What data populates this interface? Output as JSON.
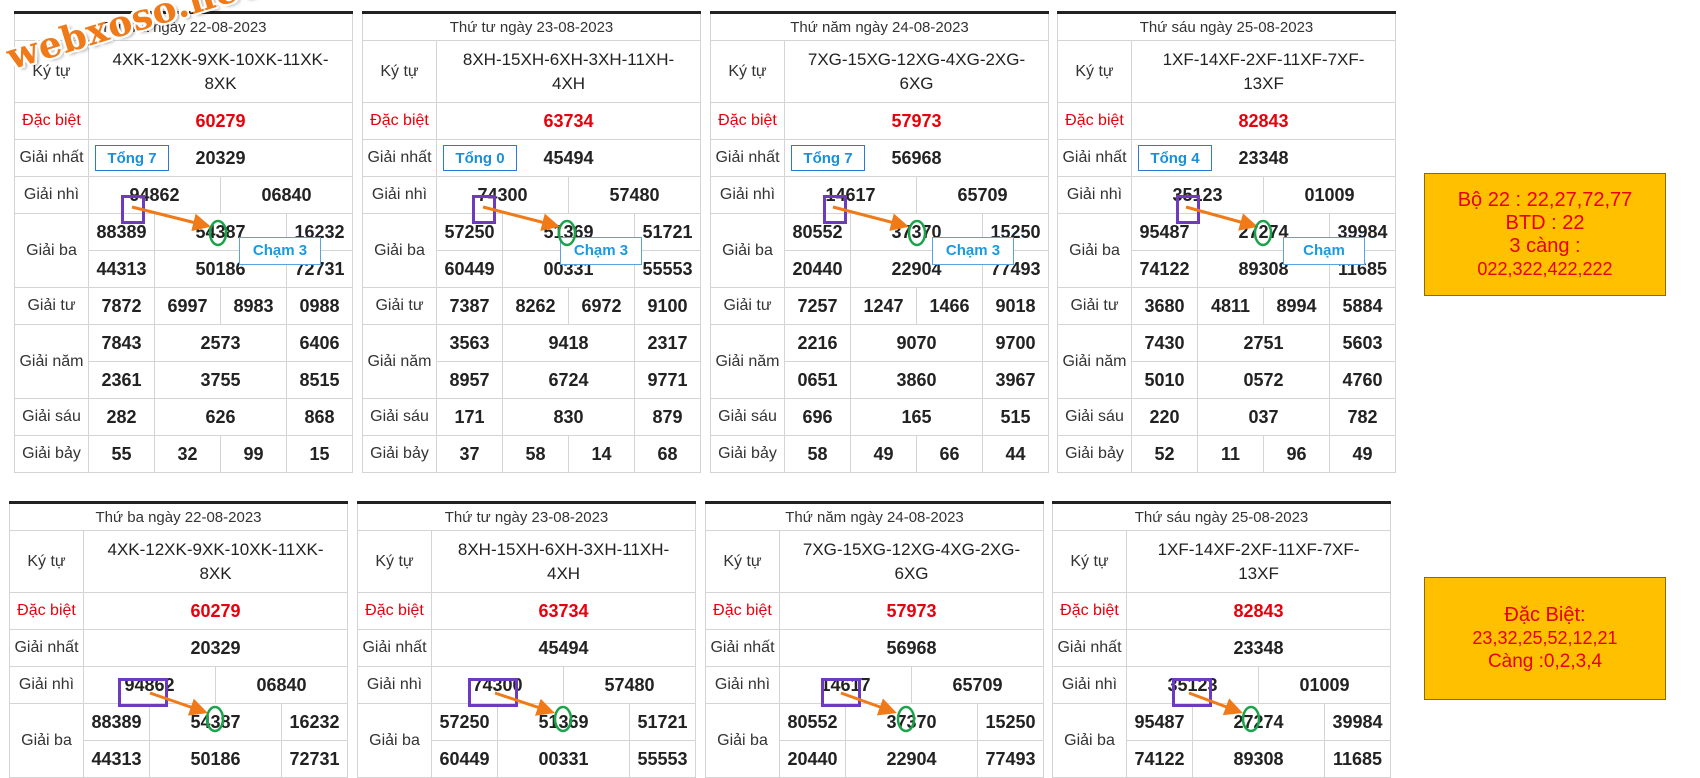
{
  "row_labels": {
    "ky_tu": "Ký tự",
    "dac_biet": "Đặc biệt",
    "giai_nhat": "Giải nhất",
    "giai_nhi": "Giải nhì",
    "giai_ba": "Giải ba",
    "giai_tu": "Giải tư",
    "giai_nam": "Giải năm",
    "giai_sau": "Giải sáu",
    "giai_bay": "Giải bảy"
  },
  "draws": [
    {
      "title": "Thứ ba ngày 22-08-2023",
      "ky_tu": "4XK-12XK-9XK-10XK-11XK-8XK",
      "dac_biet": "60279",
      "giai_nhat": "20329",
      "giai_nhi": [
        "94862",
        "06840"
      ],
      "giai_ba": [
        "88389",
        "54387",
        "16232",
        "44313",
        "50186",
        "72731"
      ],
      "giai_tu": [
        "7872",
        "6997",
        "8983",
        "0988"
      ],
      "giai_nam": [
        "7843",
        "2573",
        "6406",
        "2361",
        "3755",
        "8515"
      ],
      "giai_sau": [
        "282",
        "626",
        "868"
      ],
      "giai_bay": [
        "55",
        "32",
        "99",
        "15"
      ],
      "tong": "Tổng 7",
      "cham": "Chạm 3"
    },
    {
      "title": "Thứ tư ngày 23-08-2023",
      "ky_tu": "8XH-15XH-6XH-3XH-11XH-4XH",
      "dac_biet": "63734",
      "giai_nhat": "45494",
      "giai_nhi": [
        "74300",
        "57480"
      ],
      "giai_ba": [
        "57250",
        "51369",
        "51721",
        "60449",
        "00331",
        "55553"
      ],
      "giai_tu": [
        "7387",
        "8262",
        "6972",
        "9100"
      ],
      "giai_nam": [
        "3563",
        "9418",
        "2317",
        "8957",
        "6724",
        "9771"
      ],
      "giai_sau": [
        "171",
        "830",
        "879"
      ],
      "giai_bay": [
        "37",
        "58",
        "14",
        "68"
      ],
      "tong": "Tổng 0",
      "cham": "Chạm 3"
    },
    {
      "title": "Thứ năm ngày 24-08-2023",
      "ky_tu": "7XG-15XG-12XG-4XG-2XG-6XG",
      "dac_biet": "57973",
      "giai_nhat": "56968",
      "giai_nhi": [
        "14617",
        "65709"
      ],
      "giai_ba": [
        "80552",
        "37370",
        "15250",
        "20440",
        "22904",
        "77493"
      ],
      "giai_tu": [
        "7257",
        "1247",
        "1466",
        "9018"
      ],
      "giai_nam": [
        "2216",
        "9070",
        "9700",
        "0651",
        "3860",
        "3967"
      ],
      "giai_sau": [
        "696",
        "165",
        "515"
      ],
      "giai_bay": [
        "58",
        "49",
        "66",
        "44"
      ],
      "tong": "Tổng 7",
      "cham": "Chạm 3"
    },
    {
      "title": "Thứ sáu ngày 25-08-2023",
      "ky_tu": "1XF-14XF-2XF-11XF-7XF-13XF",
      "dac_biet": "82843",
      "giai_nhat": "23348",
      "giai_nhi": [
        "35123",
        "01009"
      ],
      "giai_ba": [
        "95487",
        "27274",
        "39984",
        "74122",
        "89308",
        "11685"
      ],
      "giai_tu": [
        "3680",
        "4811",
        "8994",
        "5884"
      ],
      "giai_nam": [
        "7430",
        "2751",
        "5603",
        "5010",
        "0572",
        "4760"
      ],
      "giai_sau": [
        "220",
        "037",
        "782"
      ],
      "giai_bay": [
        "52",
        "11",
        "96",
        "49"
      ],
      "tong": "Tổng 4",
      "cham": "Chạm"
    }
  ],
  "note_top": [
    "Bộ 22 : 22,27,72,77",
    "BTD : 22",
    "3 càng :",
    "022,322,422,222"
  ],
  "note_bottom": [
    "Đặc Biệt:",
    "23,32,25,52,12,21",
    "Càng :0,2,3,4"
  ],
  "watermark": "webxoso.net",
  "colors": {
    "accent_red": "#e8000b",
    "note_bg": "#ffc000",
    "tong_blue": "#1a8fd8",
    "purple_box": "#6e3ac0",
    "arrow_orange": "#f07a18",
    "circle_green": "#1aa34a"
  }
}
